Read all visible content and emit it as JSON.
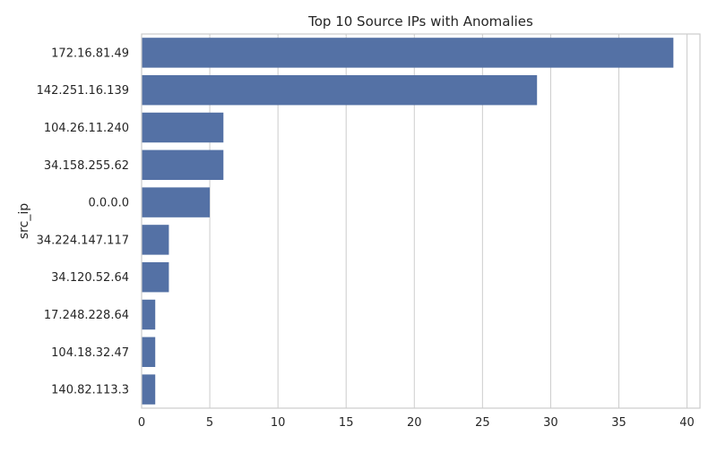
{
  "chart_data": {
    "type": "bar",
    "orientation": "horizontal",
    "title": "Top 10 Source IPs with Anomalies",
    "xlabel": "",
    "ylabel": "src_ip",
    "categories": [
      "172.16.81.49",
      "142.251.16.139",
      "104.26.11.240",
      "34.158.255.62",
      "0.0.0.0",
      "34.224.147.117",
      "34.120.52.64",
      "17.248.228.64",
      "104.18.32.47",
      "140.82.113.3"
    ],
    "values": [
      39,
      29,
      6,
      6,
      5,
      2,
      2,
      1,
      1,
      1
    ],
    "xlim": [
      0,
      40.95
    ],
    "xticks": [
      0,
      5,
      10,
      15,
      20,
      25,
      30,
      35,
      40
    ],
    "grid": "vertical",
    "bar_color": "#5471a5",
    "grid_color": "#cccccc",
    "frame_color": "#cccccc",
    "legend": "none"
  }
}
